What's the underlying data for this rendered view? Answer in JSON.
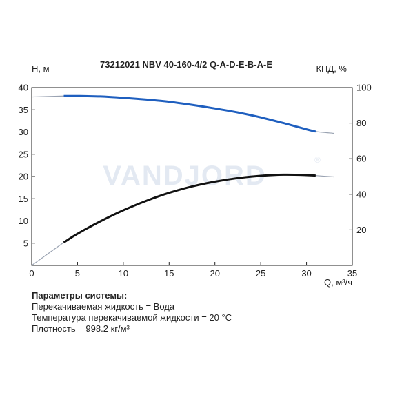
{
  "chart_data": {
    "type": "line",
    "title": "73212021 NBV 40-160-4/2 Q-A-D-E-B-A-E",
    "xlabel": "Q, м³/ч",
    "ylabel_left": "H, м",
    "ylabel_right": "КПД, %",
    "xlim": [
      0,
      35
    ],
    "ylim_left": [
      0,
      40
    ],
    "ylim_right": [
      0,
      100
    ],
    "x_ticks": [
      0,
      5,
      10,
      15,
      20,
      25,
      30,
      35
    ],
    "y_ticks_left": [
      5,
      10,
      15,
      20,
      25,
      30,
      35,
      40
    ],
    "y_ticks_right": [
      20,
      40,
      60,
      80,
      100
    ],
    "grid": false,
    "watermark": "VANDJORD",
    "watermark_mark": "®",
    "series": [
      {
        "role": "head",
        "axis": "left",
        "color": "#1f5fbf",
        "extension_color": "#9aa3b2",
        "x": [
          0,
          3.5,
          5,
          7.5,
          10,
          12.5,
          15,
          17.5,
          20,
          22.5,
          25,
          27.5,
          30,
          31,
          33
        ],
        "y": [
          37.9,
          38.1,
          38.1,
          38.0,
          37.7,
          37.3,
          36.8,
          36.1,
          35.3,
          34.4,
          33.3,
          32.0,
          30.6,
          30.1,
          29.7
        ]
      },
      {
        "role": "efficiency",
        "axis": "right",
        "color": "#111111",
        "extension_color": "#9aa3b2",
        "x": [
          0,
          3.5,
          5,
          7.5,
          10,
          12.5,
          15,
          17.5,
          20,
          22.5,
          25,
          27.5,
          30,
          31,
          33
        ],
        "y": [
          0,
          12.9,
          17.8,
          24.8,
          31.0,
          36.3,
          40.8,
          44.4,
          47.1,
          49.1,
          50.4,
          51.0,
          50.8,
          50.5,
          49.8
        ]
      }
    ]
  },
  "parameters": {
    "title": "Параметры системы:",
    "lines": [
      "Перекачиваемая жидкость = Вода",
      "Температура перекачиваемой жидкости = 20 °C",
      "Плотность = 998.2 кг/м³"
    ]
  }
}
